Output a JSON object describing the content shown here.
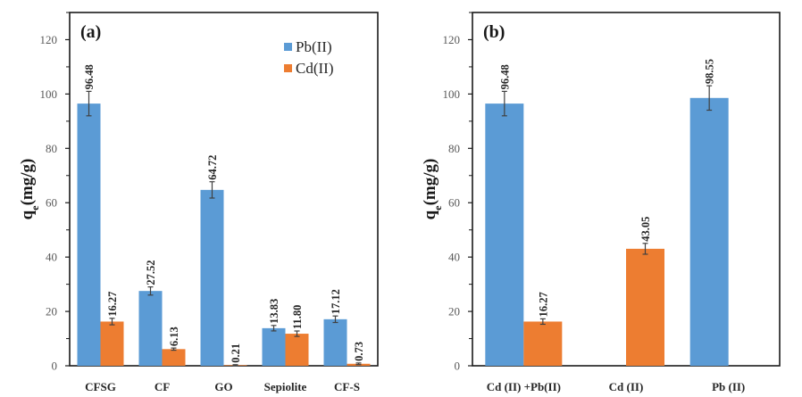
{
  "chart_data": [
    {
      "type": "bar",
      "panel_label": "(a)",
      "ylabel": "q",
      "ylabel_sub": "e",
      "ylabel_unit": "(mg/g)",
      "xlabel": "",
      "ylim": [
        0,
        130
      ],
      "yticks": [
        0,
        20,
        40,
        60,
        80,
        100,
        120
      ],
      "categories": [
        "CFSG",
        "CF",
        "GO",
        "Sepiolite",
        "CF-S"
      ],
      "legend": {
        "placement": "top-right",
        "entries": [
          "Pb(II)",
          "Cd(II)"
        ]
      },
      "series": [
        {
          "name": "Pb(II)",
          "color": "#5b9bd5",
          "values": [
            96.48,
            27.52,
            64.72,
            13.83,
            17.12
          ],
          "errors": [
            4.5,
            1.5,
            3.0,
            1.0,
            1.2
          ],
          "labels": [
            "96.48",
            "27.52",
            "64.72",
            "13.83",
            "17.12"
          ]
        },
        {
          "name": "Cd(II)",
          "color": "#ed7d31",
          "values": [
            16.27,
            6.13,
            0.21,
            11.8,
            0.73
          ],
          "errors": [
            1.2,
            0.4,
            0.2,
            1.0,
            0.3
          ],
          "labels": [
            "16.27",
            "6.13",
            "0.21",
            "11.80",
            "0.73"
          ]
        }
      ]
    },
    {
      "type": "bar",
      "panel_label": "(b)",
      "ylabel": "q",
      "ylabel_sub": "e",
      "ylabel_unit": "(mg/g)",
      "xlabel": "",
      "ylim": [
        0,
        130
      ],
      "yticks": [
        0,
        20,
        40,
        60,
        80,
        100,
        120
      ],
      "categories": [
        "Cd (II) +Pb(II)",
        "Cd (II)",
        "Pb (II)"
      ],
      "bars": [
        {
          "category": "Cd (II) +Pb(II)",
          "series": "Pb(II)",
          "color": "#5b9bd5",
          "value": 96.48,
          "error": 4.5,
          "label": "96.48",
          "slot": 0
        },
        {
          "category": "Cd (II) +Pb(II)",
          "series": "Cd(II)",
          "color": "#ed7d31",
          "value": 16.27,
          "error": 1.0,
          "label": "16.27",
          "slot": 1
        },
        {
          "category": "Cd (II)",
          "series": "Cd(II)",
          "color": "#ed7d31",
          "value": 43.05,
          "error": 2.0,
          "label": "43.05",
          "slot": 1
        },
        {
          "category": "Pb (II)",
          "series": "Pb(II)",
          "color": "#5b9bd5",
          "value": 98.55,
          "error": 4.5,
          "label": "98.55",
          "slot": 0
        }
      ]
    }
  ]
}
